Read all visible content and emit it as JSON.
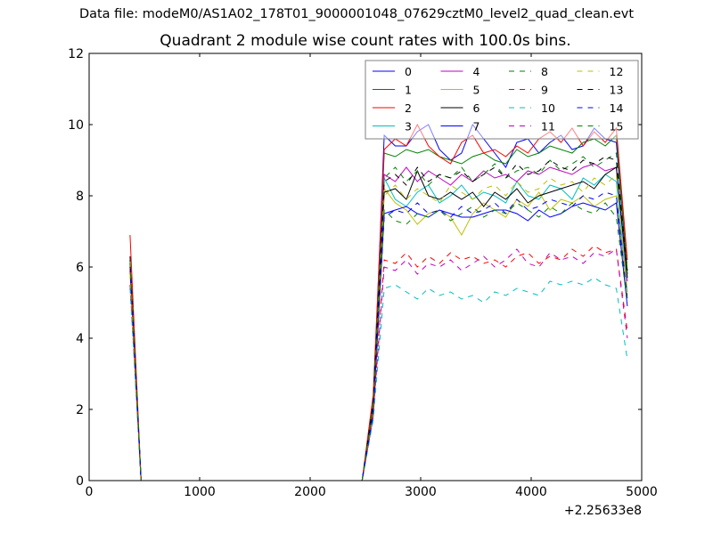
{
  "header": {
    "suptitle": "Data file: modeM0/AS1A02_178T01_9000001048_07629cztM0_level2_quad_clean.evt"
  },
  "chart_data": {
    "type": "line",
    "title": "Quadrant 2 module wise count rates with 100.0s bins.",
    "xlabel": "",
    "ylabel": "",
    "x_offset_label": "+2.25633e8",
    "xlim": [
      0,
      5000
    ],
    "ylim": [
      0,
      12
    ],
    "xticks": [
      0,
      1000,
      2000,
      3000,
      4000,
      5000
    ],
    "yticks": [
      0,
      2,
      4,
      6,
      8,
      10,
      12
    ],
    "grid": false,
    "legend_position": "top-right",
    "legend_columns": 4,
    "x": [
      370,
      470,
      570,
      670,
      770,
      870,
      970,
      1070,
      1170,
      1270,
      1370,
      1470,
      1570,
      1670,
      1770,
      1870,
      1970,
      2070,
      2170,
      2270,
      2370,
      2470,
      2570,
      2670,
      2770,
      2870,
      2970,
      3070,
      3170,
      3270,
      3370,
      3470,
      3570,
      3670,
      3770,
      3870,
      3970,
      4070,
      4170,
      4270,
      4370,
      4470,
      4570,
      4670,
      4770,
      4870
    ],
    "series": [
      {
        "name": "0",
        "color": "#0000ff",
        "dash": "solid",
        "values": [
          6.0,
          0,
          0,
          0,
          0,
          0,
          0,
          0,
          0,
          0,
          0,
          0,
          0,
          0,
          0,
          0,
          0,
          0,
          0,
          0,
          0,
          0,
          2.0,
          9.7,
          9.4,
          9.4,
          9.8,
          10.0,
          9.3,
          9.0,
          9.2,
          10.0,
          9.6,
          9.2,
          8.8,
          9.5,
          9.6,
          9.2,
          9.5,
          9.7,
          9.3,
          9.4,
          9.9,
          9.6,
          9.5,
          5.8
        ]
      },
      {
        "name": "1",
        "color": "#008000",
        "dash": "solid",
        "values": [
          6.1,
          0,
          0,
          0,
          0,
          0,
          0,
          0,
          0,
          0,
          0,
          0,
          0,
          0,
          0,
          0,
          0,
          0,
          0,
          0,
          0,
          0,
          2.2,
          9.2,
          9.1,
          9.3,
          9.2,
          9.3,
          9.1,
          9.0,
          8.9,
          9.1,
          9.2,
          9.0,
          8.9,
          9.3,
          9.1,
          9.2,
          9.4,
          9.3,
          9.2,
          9.5,
          9.6,
          9.4,
          9.7,
          5.9
        ]
      },
      {
        "name": "2",
        "color": "#ff0000",
        "dash": "solid",
        "values": [
          6.9,
          0,
          0,
          0,
          0,
          0,
          0,
          0,
          0,
          0,
          0,
          0,
          0,
          0,
          0,
          0,
          0,
          0,
          0,
          0,
          0,
          0,
          2.4,
          9.3,
          9.6,
          9.4,
          10.0,
          9.4,
          9.1,
          8.9,
          9.5,
          9.7,
          9.2,
          9.3,
          9.1,
          9.4,
          9.2,
          9.6,
          9.8,
          9.5,
          9.9,
          9.4,
          9.8,
          9.5,
          9.9,
          6.2
        ]
      },
      {
        "name": "3",
        "color": "#00bfbf",
        "dash": "solid",
        "values": [
          6.2,
          0,
          0,
          0,
          0,
          0,
          0,
          0,
          0,
          0,
          0,
          0,
          0,
          0,
          0,
          0,
          0,
          0,
          0,
          0,
          0,
          0,
          2.0,
          8.5,
          7.9,
          7.7,
          8.1,
          8.3,
          7.8,
          8.0,
          8.3,
          7.9,
          8.1,
          8.0,
          7.8,
          8.4,
          8.0,
          7.9,
          8.3,
          8.2,
          7.9,
          8.5,
          8.3,
          8.6,
          8.4,
          5.3
        ]
      },
      {
        "name": "4",
        "color": "#bf00bf",
        "dash": "solid",
        "values": [
          6.0,
          0,
          0,
          0,
          0,
          0,
          0,
          0,
          0,
          0,
          0,
          0,
          0,
          0,
          0,
          0,
          0,
          0,
          0,
          0,
          0,
          0,
          2.1,
          8.6,
          8.4,
          8.8,
          8.4,
          8.7,
          8.5,
          8.3,
          8.6,
          8.4,
          8.7,
          8.5,
          8.6,
          8.4,
          8.7,
          8.6,
          8.8,
          8.7,
          8.6,
          8.8,
          8.9,
          8.7,
          8.8,
          5.6
        ]
      },
      {
        "name": "5",
        "color": "#bfbf00",
        "dash": "solid",
        "values": [
          5.8,
          0,
          0,
          0,
          0,
          0,
          0,
          0,
          0,
          0,
          0,
          0,
          0,
          0,
          0,
          0,
          0,
          0,
          0,
          0,
          0,
          0,
          1.9,
          8.2,
          7.8,
          7.6,
          7.2,
          7.5,
          7.6,
          7.4,
          6.9,
          7.5,
          7.8,
          7.6,
          7.4,
          7.9,
          7.7,
          8.1,
          7.6,
          7.9,
          7.8,
          8.0,
          7.7,
          7.9,
          8.0,
          5.2
        ]
      },
      {
        "name": "6",
        "color": "#000000",
        "dash": "solid",
        "values": [
          6.1,
          0,
          0,
          0,
          0,
          0,
          0,
          0,
          0,
          0,
          0,
          0,
          0,
          0,
          0,
          0,
          0,
          0,
          0,
          0,
          0,
          0,
          2.0,
          8.1,
          8.2,
          7.9,
          8.7,
          8.0,
          7.9,
          8.1,
          7.9,
          8.1,
          7.7,
          8.1,
          7.9,
          8.2,
          7.8,
          8.0,
          8.1,
          8.2,
          8.3,
          8.4,
          8.2,
          8.6,
          8.8,
          5.7
        ]
      },
      {
        "name": "7",
        "color": "#0000ff",
        "dash": "solid",
        "values": [
          6.0,
          0,
          0,
          0,
          0,
          0,
          0,
          0,
          0,
          0,
          0,
          0,
          0,
          0,
          0,
          0,
          0,
          0,
          0,
          0,
          0,
          0,
          1.8,
          7.5,
          7.6,
          7.7,
          7.5,
          7.4,
          7.6,
          7.5,
          7.4,
          7.4,
          7.5,
          7.6,
          7.6,
          7.5,
          7.3,
          7.6,
          7.4,
          7.5,
          7.7,
          7.8,
          7.7,
          7.6,
          7.8,
          4.9
        ]
      },
      {
        "name": "8",
        "color": "#008000",
        "dash": "dashed",
        "values": [
          6.2,
          0,
          0,
          0,
          0,
          0,
          0,
          0,
          0,
          0,
          0,
          0,
          0,
          0,
          0,
          0,
          0,
          0,
          0,
          0,
          0,
          0,
          2.1,
          8.5,
          8.8,
          8.4,
          8.7,
          8.3,
          8.6,
          8.5,
          8.8,
          8.4,
          8.6,
          8.9,
          8.5,
          8.7,
          8.8,
          8.6,
          9.0,
          8.7,
          8.9,
          9.1,
          8.8,
          9.0,
          9.2,
          5.8
        ]
      },
      {
        "name": "9",
        "color": "#ff0000",
        "dash": "dashed",
        "values": [
          5.9,
          0,
          0,
          0,
          0,
          0,
          0,
          0,
          0,
          0,
          0,
          0,
          0,
          0,
          0,
          0,
          0,
          0,
          0,
          0,
          0,
          0,
          1.9,
          6.2,
          6.1,
          6.4,
          6.0,
          6.3,
          6.1,
          6.4,
          6.2,
          6.3,
          6.1,
          6.2,
          6.0,
          6.3,
          6.4,
          6.1,
          6.3,
          6.2,
          6.5,
          6.3,
          6.6,
          6.4,
          6.5,
          4.2
        ]
      },
      {
        "name": "10",
        "color": "#00bfbf",
        "dash": "dashed",
        "values": [
          5.4,
          0,
          0,
          0,
          0,
          0,
          0,
          0,
          0,
          0,
          0,
          0,
          0,
          0,
          0,
          0,
          0,
          0,
          0,
          0,
          0,
          0,
          1.7,
          5.4,
          5.5,
          5.3,
          5.1,
          5.4,
          5.2,
          5.3,
          5.1,
          5.2,
          5.0,
          5.3,
          5.2,
          5.4,
          5.3,
          5.2,
          5.6,
          5.5,
          5.6,
          5.5,
          5.7,
          5.5,
          5.4,
          3.4
        ]
      },
      {
        "name": "11",
        "color": "#bf00bf",
        "dash": "dashed",
        "values": [
          5.5,
          0,
          0,
          0,
          0,
          0,
          0,
          0,
          0,
          0,
          0,
          0,
          0,
          0,
          0,
          0,
          0,
          0,
          0,
          0,
          0,
          0,
          1.8,
          6.0,
          5.9,
          6.2,
          5.8,
          6.1,
          6.0,
          6.2,
          5.9,
          6.1,
          6.3,
          6.0,
          6.2,
          6.5,
          6.1,
          6.0,
          6.4,
          6.2,
          6.3,
          6.1,
          6.4,
          6.3,
          6.5,
          4.0
        ]
      },
      {
        "name": "12",
        "color": "#bfbf00",
        "dash": "dashed",
        "values": [
          5.8,
          0,
          0,
          0,
          0,
          0,
          0,
          0,
          0,
          0,
          0,
          0,
          0,
          0,
          0,
          0,
          0,
          0,
          0,
          0,
          0,
          0,
          1.9,
          8.0,
          8.3,
          7.9,
          8.2,
          8.0,
          7.8,
          8.3,
          8.1,
          7.9,
          8.2,
          8.3,
          8.0,
          8.4,
          8.1,
          8.2,
          8.5,
          8.3,
          8.4,
          8.1,
          8.5,
          8.3,
          8.6,
          5.3
        ]
      },
      {
        "name": "13",
        "color": "#000000",
        "dash": "dashed",
        "values": [
          6.3,
          0,
          0,
          0,
          0,
          0,
          0,
          0,
          0,
          0,
          0,
          0,
          0,
          0,
          0,
          0,
          0,
          0,
          0,
          0,
          0,
          0,
          2.2,
          8.4,
          8.6,
          8.3,
          8.8,
          8.4,
          8.6,
          8.5,
          8.7,
          8.4,
          8.6,
          8.8,
          8.5,
          8.9,
          8.6,
          8.7,
          9.0,
          8.8,
          8.7,
          9.0,
          8.9,
          9.1,
          9.0,
          5.9
        ]
      },
      {
        "name": "14",
        "color": "#0000ff",
        "dash": "dashed",
        "values": [
          6.0,
          0,
          0,
          0,
          0,
          0,
          0,
          0,
          0,
          0,
          0,
          0,
          0,
          0,
          0,
          0,
          0,
          0,
          0,
          0,
          0,
          0,
          1.9,
          7.4,
          7.6,
          7.5,
          7.8,
          7.5,
          7.6,
          7.4,
          7.7,
          7.5,
          7.6,
          7.8,
          7.5,
          7.9,
          7.6,
          7.7,
          7.9,
          7.8,
          7.7,
          8.0,
          7.9,
          8.1,
          8.0,
          5.1
        ]
      },
      {
        "name": "15",
        "color": "#008000",
        "dash": "dashed",
        "values": [
          6.1,
          0,
          0,
          0,
          0,
          0,
          0,
          0,
          0,
          0,
          0,
          0,
          0,
          0,
          0,
          0,
          0,
          0,
          0,
          0,
          0,
          0,
          2.0,
          7.6,
          7.3,
          7.2,
          7.5,
          7.4,
          7.6,
          7.3,
          7.5,
          7.7,
          7.4,
          7.6,
          7.5,
          7.8,
          7.6,
          7.4,
          7.7,
          7.5,
          7.8,
          7.6,
          7.5,
          7.8,
          7.4,
          5.0
        ]
      }
    ]
  }
}
